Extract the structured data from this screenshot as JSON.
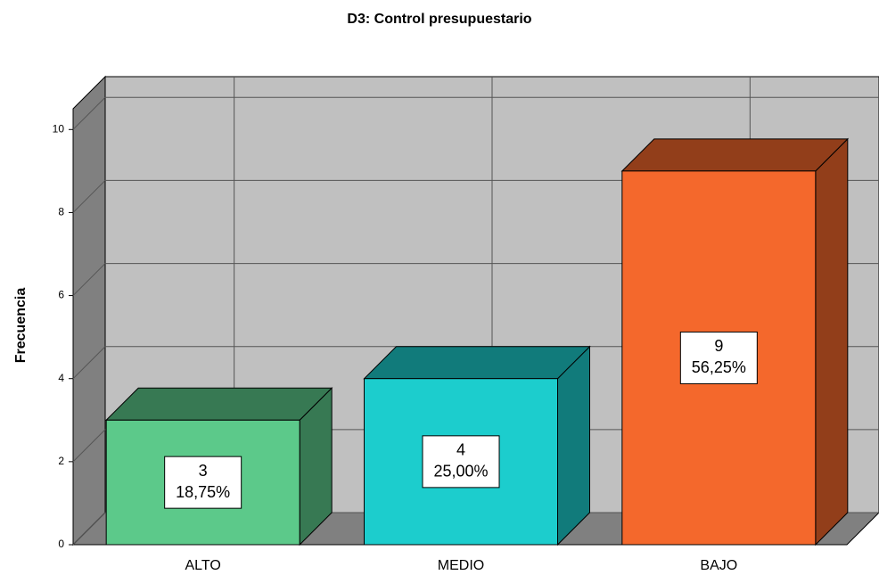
{
  "chart_data": {
    "type": "bar3d",
    "title": "D3: Control presupuestario",
    "y_label": "Frecuencia",
    "categories": [
      "ALTO",
      "MEDIO",
      "BAJO"
    ],
    "values": [
      3,
      4,
      9
    ],
    "percentages": [
      18.75,
      25,
      56.25
    ],
    "percentage_labels": [
      "18,75%",
      "25,00%",
      "56,25%"
    ],
    "colors": [
      "#5cc98a",
      "#1ccdcd",
      "#f4682c"
    ],
    "ylim": [
      0,
      10.5
    ],
    "yticks": [
      0,
      2,
      4,
      6,
      8,
      10
    ],
    "grid": true
  }
}
